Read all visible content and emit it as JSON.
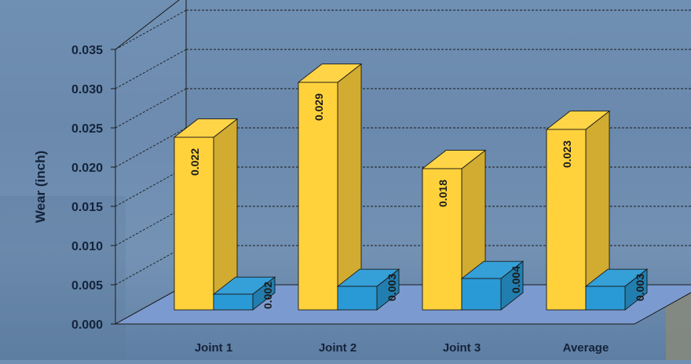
{
  "chart_data": {
    "type": "bar",
    "title": "",
    "xlabel": "",
    "ylabel": "Wear (inch)",
    "ylim": [
      0,
      0.035
    ],
    "yticks": [
      "0.000",
      "0.005",
      "0.010",
      "0.015",
      "0.020",
      "0.025",
      "0.030",
      "0.035"
    ],
    "categories": [
      "Joint 1",
      "Joint 2",
      "Joint 3",
      "Average"
    ],
    "series": [
      {
        "values": [
          0.022,
          0.029,
          0.018,
          0.023
        ],
        "labels": [
          "0.022",
          "0.029",
          "0.018",
          "0.023"
        ],
        "color": "#ffd23c"
      },
      {
        "values": [
          0.002,
          0.003,
          0.004,
          0.003
        ],
        "labels": [
          "0.002",
          "0.003",
          "0.004",
          "0.003"
        ],
        "color": "#2a9ad6"
      }
    ],
    "grid": true,
    "style": "3d"
  }
}
